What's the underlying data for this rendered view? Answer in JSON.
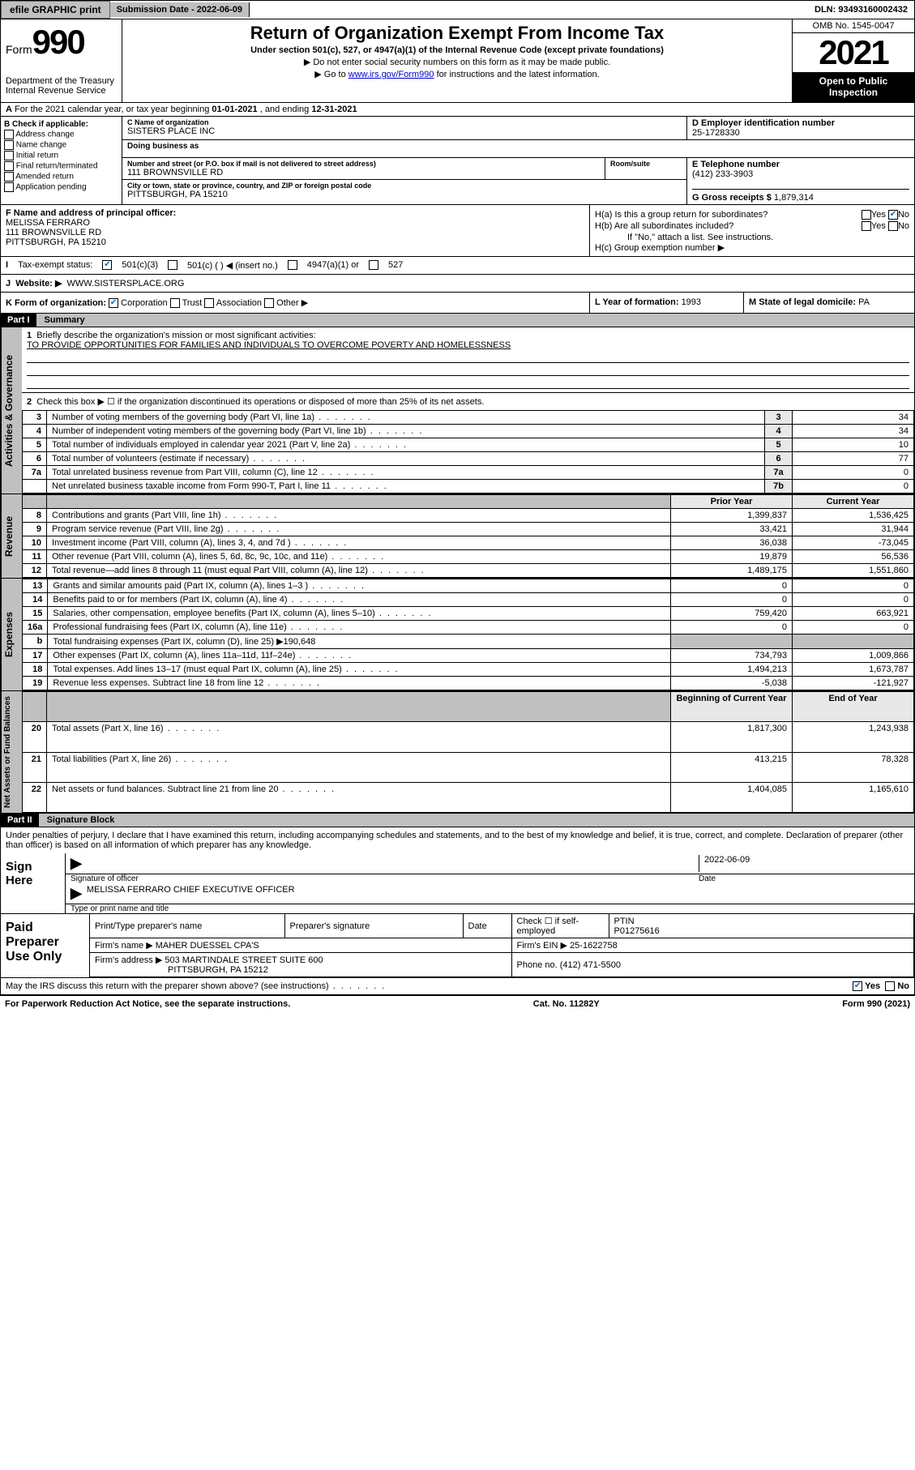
{
  "topbar": {
    "efile": "efile GRAPHIC print",
    "subdate_label": "Submission Date - ",
    "subdate": "2022-06-09",
    "dln_label": "DLN: ",
    "dln": "93493160002432"
  },
  "header": {
    "form_word": "Form",
    "form_no": "990",
    "dept": "Department of the Treasury\nInternal Revenue Service",
    "title": "Return of Organization Exempt From Income Tax",
    "sub": "Under section 501(c), 527, or 4947(a)(1) of the Internal Revenue Code (except private foundations)",
    "note1": "▶ Do not enter social security numbers on this form as it may be made public.",
    "note2_pre": "▶ Go to ",
    "note2_link": "www.irs.gov/Form990",
    "note2_post": " for instructions and the latest information.",
    "omb": "OMB No. 1545-0047",
    "year": "2021",
    "inspect": "Open to Public Inspection"
  },
  "A": {
    "text_pre": "For the 2021 calendar year, or tax year beginning ",
    "begin": "01-01-2021",
    "mid": " , and ending ",
    "end": "12-31-2021"
  },
  "B": {
    "label": "B Check if applicable:",
    "opts": [
      "Address change",
      "Name change",
      "Initial return",
      "Final return/terminated",
      "Amended return",
      "Application pending"
    ]
  },
  "C": {
    "name_label": "C Name of organization",
    "name": "SISTERS PLACE INC",
    "dba_label": "Doing business as",
    "street_label": "Number and street (or P.O. box if mail is not delivered to street address)",
    "suite_label": "Room/suite",
    "street": "111 BROWNSVILLE RD",
    "city_label": "City or town, state or province, country, and ZIP or foreign postal code",
    "city": "PITTSBURGH, PA  15210"
  },
  "D": {
    "label": "D Employer identification number",
    "val": "25-1728330"
  },
  "E": {
    "label": "E Telephone number",
    "val": "(412) 233-3903"
  },
  "G": {
    "label": "G Gross receipts $ ",
    "val": "1,879,314"
  },
  "F": {
    "label": "F  Name and address of principal officer:",
    "name": "MELISSA FERRARO",
    "addr1": "111 BROWNSVILLE RD",
    "addr2": "PITTSBURGH, PA  15210"
  },
  "H": {
    "a": "H(a)  Is this a group return for subordinates?",
    "a_yes": "Yes",
    "a_no": "No",
    "b": "H(b)  Are all subordinates included?",
    "b_yes": "Yes",
    "b_no": "No",
    "b_note": "If \"No,\" attach a list. See instructions.",
    "c": "H(c)  Group exemption number ▶"
  },
  "I": {
    "label": "Tax-exempt status:",
    "o1": "501(c)(3)",
    "o2": "501(c) (  ) ◀ (insert no.)",
    "o3": "4947(a)(1) or",
    "o4": "527"
  },
  "J": {
    "label": "Website: ▶",
    "val": "WWW.SISTERSPLACE.ORG"
  },
  "K": {
    "label": "K Form of organization:",
    "o1": "Corporation",
    "o2": "Trust",
    "o3": "Association",
    "o4": "Other ▶"
  },
  "L": {
    "label": "L Year of formation: ",
    "val": "1993"
  },
  "M": {
    "label": "M State of legal domicile: ",
    "val": "PA"
  },
  "partI": {
    "hdr": "Part I",
    "title": "Summary"
  },
  "gov": {
    "l1_label": "Briefly describe the organization's mission or most significant activities:",
    "l1_val": "TO PROVIDE OPPORTUNITIES FOR FAMILIES AND INDIVIDUALS TO OVERCOME POVERTY AND HOMELESSNESS",
    "l2": "Check this box ▶ ☐  if the organization discontinued its operations or disposed of more than 25% of its net assets.",
    "rows": [
      {
        "n": "3",
        "t": "Number of voting members of the governing body (Part VI, line 1a)",
        "box": "3",
        "v": "34"
      },
      {
        "n": "4",
        "t": "Number of independent voting members of the governing body (Part VI, line 1b)",
        "box": "4",
        "v": "34"
      },
      {
        "n": "5",
        "t": "Total number of individuals employed in calendar year 2021 (Part V, line 2a)",
        "box": "5",
        "v": "10"
      },
      {
        "n": "6",
        "t": "Total number of volunteers (estimate if necessary)",
        "box": "6",
        "v": "77"
      },
      {
        "n": "7a",
        "t": "Total unrelated business revenue from Part VIII, column (C), line 12",
        "box": "7a",
        "v": "0"
      },
      {
        "n": "",
        "t": "Net unrelated business taxable income from Form 990-T, Part I, line 11",
        "box": "7b",
        "v": "0"
      }
    ]
  },
  "yearhdr": {
    "prior": "Prior Year",
    "current": "Current Year"
  },
  "rev": [
    {
      "n": "8",
      "t": "Contributions and grants (Part VIII, line 1h)",
      "p": "1,399,837",
      "c": "1,536,425"
    },
    {
      "n": "9",
      "t": "Program service revenue (Part VIII, line 2g)",
      "p": "33,421",
      "c": "31,944"
    },
    {
      "n": "10",
      "t": "Investment income (Part VIII, column (A), lines 3, 4, and 7d )",
      "p": "36,038",
      "c": "-73,045"
    },
    {
      "n": "11",
      "t": "Other revenue (Part VIII, column (A), lines 5, 6d, 8c, 9c, 10c, and 11e)",
      "p": "19,879",
      "c": "56,536"
    },
    {
      "n": "12",
      "t": "Total revenue—add lines 8 through 11 (must equal Part VIII, column (A), line 12)",
      "p": "1,489,175",
      "c": "1,551,860"
    }
  ],
  "exp": [
    {
      "n": "13",
      "t": "Grants and similar amounts paid (Part IX, column (A), lines 1–3 )",
      "p": "0",
      "c": "0"
    },
    {
      "n": "14",
      "t": "Benefits paid to or for members (Part IX, column (A), line 4)",
      "p": "0",
      "c": "0"
    },
    {
      "n": "15",
      "t": "Salaries, other compensation, employee benefits (Part IX, column (A), lines 5–10)",
      "p": "759,420",
      "c": "663,921"
    },
    {
      "n": "16a",
      "t": "Professional fundraising fees (Part IX, column (A), line 11e)",
      "p": "0",
      "c": "0"
    },
    {
      "n": "b",
      "t": "Total fundraising expenses (Part IX, column (D), line 25) ▶190,648",
      "p": "",
      "c": "",
      "shade": true
    },
    {
      "n": "17",
      "t": "Other expenses (Part IX, column (A), lines 11a–11d, 11f–24e)",
      "p": "734,793",
      "c": "1,009,866"
    },
    {
      "n": "18",
      "t": "Total expenses. Add lines 13–17 (must equal Part IX, column (A), line 25)",
      "p": "1,494,213",
      "c": "1,673,787"
    },
    {
      "n": "19",
      "t": "Revenue less expenses. Subtract line 18 from line 12",
      "p": "-5,038",
      "c": "-121,927"
    }
  ],
  "nethdr": {
    "begin": "Beginning of Current Year",
    "end": "End of Year"
  },
  "net": [
    {
      "n": "20",
      "t": "Total assets (Part X, line 16)",
      "p": "1,817,300",
      "c": "1,243,938"
    },
    {
      "n": "21",
      "t": "Total liabilities (Part X, line 26)",
      "p": "413,215",
      "c": "78,328"
    },
    {
      "n": "22",
      "t": "Net assets or fund balances. Subtract line 21 from line 20",
      "p": "1,404,085",
      "c": "1,165,610"
    }
  ],
  "partII": {
    "hdr": "Part II",
    "title": "Signature Block"
  },
  "sig": {
    "perjury": "Under penalties of perjury, I declare that I have examined this return, including accompanying schedules and statements, and to the best of my knowledge and belief, it is true, correct, and complete. Declaration of preparer (other than officer) is based on all information of which preparer has any knowledge.",
    "sign_here": "Sign Here",
    "officer_sig": "Signature of officer",
    "date": "2022-06-09",
    "date_label": "Date",
    "officer_name": "MELISSA FERRARO CHIEF EXECUTIVE OFFICER",
    "name_label": "Type or print name and title"
  },
  "prep": {
    "label": "Paid Preparer Use Only",
    "h1": "Print/Type preparer's name",
    "h2": "Preparer's signature",
    "h3": "Date",
    "check_label": "Check ☐ if self-employed",
    "ptin_label": "PTIN",
    "ptin": "P01275616",
    "firm_label": "Firm's name   ▶ ",
    "firm": "MAHER DUESSEL CPA'S",
    "ein_label": "Firm's EIN ▶ ",
    "ein": "25-1622758",
    "addr_label": "Firm's address ▶ ",
    "addr1": "503 MARTINDALE STREET SUITE 600",
    "addr2": "PITTSBURGH, PA  15212",
    "phone_label": "Phone no. ",
    "phone": "(412) 471-5500"
  },
  "discuss": {
    "q": "May the IRS discuss this return with the preparer shown above? (see instructions)",
    "yes": "Yes",
    "no": "No"
  },
  "footer": {
    "left": "For Paperwork Reduction Act Notice, see the separate instructions.",
    "mid": "Cat. No. 11282Y",
    "right_pre": "Form ",
    "right_form": "990",
    "right_post": " (2021)"
  }
}
